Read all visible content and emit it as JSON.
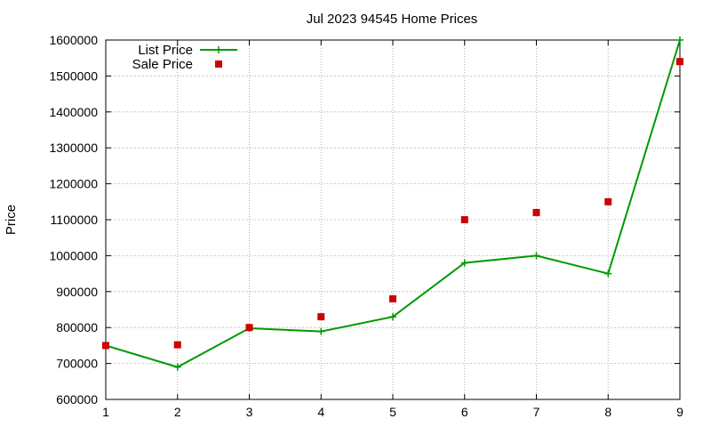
{
  "chart_data": {
    "type": "line",
    "title": "Jul 2023 94545 Home Prices",
    "xlabel": "",
    "ylabel": "Price",
    "xlim": [
      1,
      9
    ],
    "ylim": [
      600000,
      1600000
    ],
    "x_ticks": [
      "1",
      "2",
      "3",
      "4",
      "5",
      "6",
      "7",
      "8",
      "9"
    ],
    "y_ticks": [
      "600000",
      "700000",
      "800000",
      "900000",
      "1000000",
      "1100000",
      "1200000",
      "1300000",
      "1400000",
      "1500000",
      "1600000"
    ],
    "grid": true,
    "legend_position": "top-left",
    "x": [
      1,
      2,
      3,
      4,
      5,
      6,
      7,
      8,
      9
    ],
    "series": [
      {
        "name": "List Price",
        "style": "linespoints",
        "color": "#009900",
        "values": [
          750000,
          690000,
          798000,
          789000,
          830000,
          980000,
          1000000,
          950000,
          1600000
        ]
      },
      {
        "name": "Sale Price",
        "style": "points",
        "color": "#cc0000",
        "values": [
          750000,
          752000,
          800000,
          830000,
          880000,
          1100000,
          1120000,
          1150000,
          1540000
        ]
      }
    ]
  }
}
